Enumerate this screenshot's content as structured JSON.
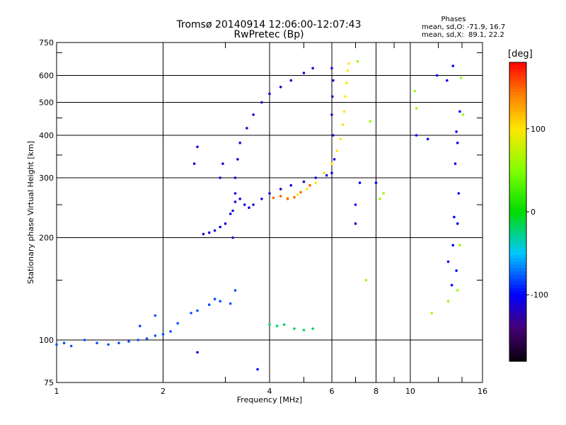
{
  "chart_data": {
    "type": "scatter",
    "title": "Tromsø 20140914 12:06:00-12:07:43",
    "subtitle": "RwPretec (Bp)",
    "xlabel": "Frequency [MHz]",
    "ylabel": "Stationary phase Virtual Height [km]",
    "x_scale": "log",
    "y_scale": "log",
    "xlim": [
      1,
      16
    ],
    "ylim": [
      75,
      750
    ],
    "x_ticks": [
      1,
      2,
      4,
      6,
      8,
      10,
      16
    ],
    "x_tick_labels": [
      "1",
      "2",
      "4",
      "6",
      "8",
      "10",
      "16"
    ],
    "y_ticks": [
      75,
      100,
      200,
      300,
      400,
      500,
      600,
      750
    ],
    "y_tick_labels": [
      "75",
      "100",
      "200",
      "300",
      "400",
      "500",
      "600",
      "750"
    ],
    "grid": true,
    "phases_box": {
      "heading": "Phases",
      "o_line": "mean, sd,O: -71.9, 16.7",
      "x_line": "mean, sd,X:  89.1, 22.2"
    },
    "colorbar": {
      "unit_label": "[deg]",
      "range": [
        -180,
        180
      ],
      "ticks": [
        100,
        0,
        -100
      ],
      "tick_labels": [
        "100",
        "0",
        "-100"
      ]
    },
    "series": [
      {
        "color_deg": -80,
        "points": [
          [
            1.0,
            97
          ],
          [
            1.05,
            98
          ],
          [
            1.1,
            96
          ],
          [
            1.2,
            100
          ],
          [
            1.3,
            98
          ],
          [
            1.4,
            97
          ],
          [
            1.5,
            98
          ],
          [
            1.6,
            99
          ],
          [
            1.7,
            100
          ],
          [
            1.8,
            101
          ],
          [
            1.9,
            103
          ],
          [
            2.0,
            104
          ],
          [
            2.1,
            106
          ],
          [
            1.72,
            110
          ],
          [
            1.9,
            118
          ],
          [
            2.2,
            112
          ],
          [
            2.4,
            120
          ],
          [
            2.5,
            122
          ],
          [
            2.7,
            127
          ],
          [
            2.8,
            132
          ],
          [
            2.9,
            130
          ],
          [
            3.1,
            128
          ],
          [
            3.2,
            140
          ]
        ]
      },
      {
        "color_deg": -110,
        "points": [
          [
            2.6,
            205
          ],
          [
            2.7,
            207
          ],
          [
            2.8,
            210
          ],
          [
            2.9,
            215
          ],
          [
            3.0,
            220
          ],
          [
            3.1,
            235
          ],
          [
            3.2,
            255
          ],
          [
            3.3,
            260
          ],
          [
            3.4,
            250
          ],
          [
            3.5,
            245
          ],
          [
            3.6,
            250
          ],
          [
            3.8,
            260
          ],
          [
            4.0,
            270
          ],
          [
            4.3,
            278
          ],
          [
            4.6,
            285
          ],
          [
            5.0,
            292
          ],
          [
            5.4,
            300
          ],
          [
            5.8,
            305
          ],
          [
            6.0,
            310
          ],
          [
            6.1,
            340
          ],
          [
            6.05,
            400
          ],
          [
            6.0,
            460
          ],
          [
            6.02,
            520
          ],
          [
            6.05,
            580
          ],
          [
            6.0,
            630
          ],
          [
            3.15,
            200
          ],
          [
            3.15,
            240
          ],
          [
            3.2,
            270
          ],
          [
            3.2,
            300
          ],
          [
            3.25,
            340
          ],
          [
            3.3,
            380
          ],
          [
            3.45,
            420
          ],
          [
            3.6,
            460
          ],
          [
            3.8,
            500
          ],
          [
            4.0,
            530
          ],
          [
            4.3,
            555
          ],
          [
            4.6,
            580
          ],
          [
            5.0,
            610
          ],
          [
            5.3,
            630
          ],
          [
            2.45,
            330
          ],
          [
            2.5,
            370
          ],
          [
            2.9,
            300
          ],
          [
            2.95,
            330
          ]
        ]
      },
      {
        "color_deg": 100,
        "points": [
          [
            4.5,
            262
          ],
          [
            4.8,
            268
          ],
          [
            5.1,
            278
          ],
          [
            5.4,
            290
          ],
          [
            5.7,
            310
          ],
          [
            6.0,
            330
          ],
          [
            6.2,
            360
          ],
          [
            6.35,
            390
          ],
          [
            6.45,
            430
          ],
          [
            6.5,
            470
          ],
          [
            6.55,
            520
          ],
          [
            6.6,
            570
          ],
          [
            6.65,
            620
          ],
          [
            6.7,
            650
          ]
        ]
      },
      {
        "color_deg": 150,
        "points": [
          [
            4.1,
            262
          ],
          [
            4.3,
            265
          ],
          [
            4.5,
            260
          ],
          [
            4.7,
            263
          ],
          [
            4.9,
            272
          ],
          [
            5.2,
            285
          ]
        ]
      },
      {
        "color_deg": -20,
        "points": [
          [
            4.0,
            111
          ],
          [
            4.2,
            110
          ],
          [
            4.4,
            111
          ],
          [
            4.7,
            108
          ],
          [
            5.0,
            107
          ],
          [
            5.3,
            108
          ]
        ]
      },
      {
        "color_deg": -100,
        "points": [
          [
            11.9,
            600
          ],
          [
            12.7,
            580
          ],
          [
            13.2,
            640
          ],
          [
            13.8,
            470
          ],
          [
            13.5,
            410
          ],
          [
            13.6,
            380
          ],
          [
            13.4,
            330
          ],
          [
            13.7,
            270
          ],
          [
            13.3,
            230
          ],
          [
            13.6,
            220
          ],
          [
            13.2,
            190
          ],
          [
            13.5,
            160
          ],
          [
            13.1,
            145
          ],
          [
            10.4,
            400
          ],
          [
            11.2,
            390
          ],
          [
            7.2,
            290
          ],
          [
            8.0,
            290
          ],
          [
            7.0,
            250
          ],
          [
            7.0,
            220
          ],
          [
            12.8,
            170
          ],
          [
            3.7,
            82
          ],
          [
            2.5,
            92
          ]
        ]
      },
      {
        "color_deg": 60,
        "points": [
          [
            7.1,
            660
          ],
          [
            10.3,
            540
          ],
          [
            10.4,
            480
          ],
          [
            13.9,
            590
          ],
          [
            14.1,
            460
          ],
          [
            7.7,
            440
          ],
          [
            12.8,
            130
          ],
          [
            13.8,
            190
          ],
          [
            11.5,
            120
          ],
          [
            13.6,
            140
          ],
          [
            7.5,
            150
          ],
          [
            8.4,
            270
          ],
          [
            8.2,
            260
          ]
        ]
      }
    ]
  }
}
